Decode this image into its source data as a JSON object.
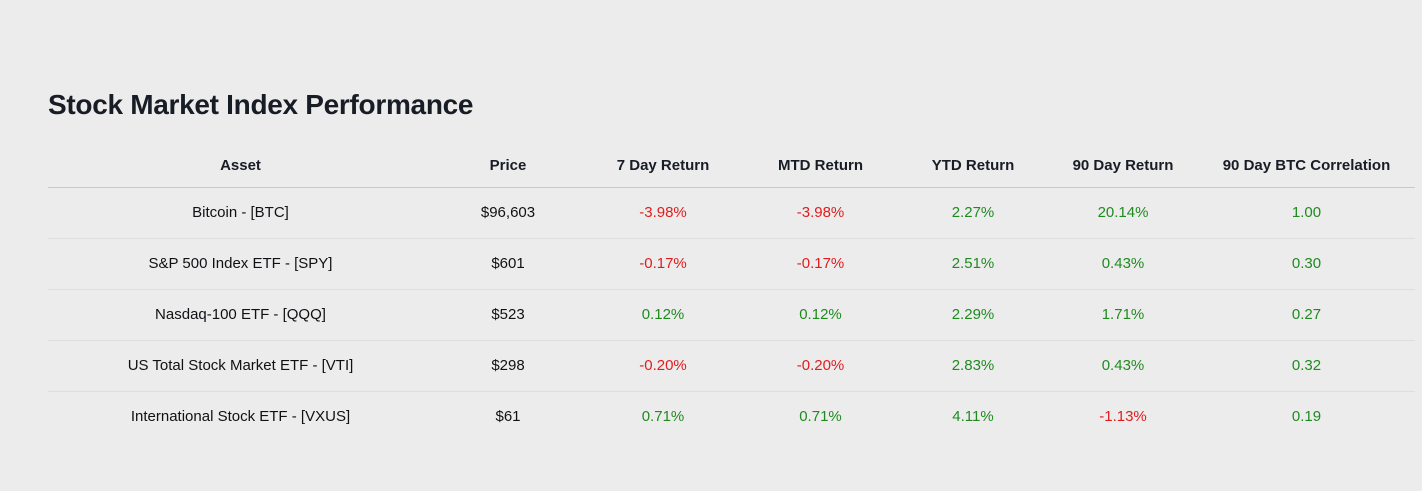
{
  "page": {
    "title": "Stock Market Index Performance"
  },
  "colors": {
    "positive": "#1f8b1f",
    "negative": "#e21c1c",
    "text": "#101114"
  },
  "table": {
    "columns": [
      "Asset",
      "Price",
      "7 Day Return",
      "MTD Return",
      "YTD Return",
      "90 Day Return",
      "90 Day BTC Correlation"
    ],
    "rows": [
      {
        "asset": "Bitcoin - [BTC]",
        "price": "$96,603",
        "returns": [
          {
            "value": "-3.98%",
            "sentiment": "negative"
          },
          {
            "value": "-3.98%",
            "sentiment": "negative"
          },
          {
            "value": "2.27%",
            "sentiment": "positive"
          },
          {
            "value": "20.14%",
            "sentiment": "positive"
          },
          {
            "value": "1.00",
            "sentiment": "positive"
          }
        ]
      },
      {
        "asset": "S&P 500 Index ETF - [SPY]",
        "price": "$601",
        "returns": [
          {
            "value": "-0.17%",
            "sentiment": "negative"
          },
          {
            "value": "-0.17%",
            "sentiment": "negative"
          },
          {
            "value": "2.51%",
            "sentiment": "positive"
          },
          {
            "value": "0.43%",
            "sentiment": "positive"
          },
          {
            "value": "0.30",
            "sentiment": "positive"
          }
        ]
      },
      {
        "asset": "Nasdaq-100 ETF - [QQQ]",
        "price": "$523",
        "returns": [
          {
            "value": "0.12%",
            "sentiment": "positive"
          },
          {
            "value": "0.12%",
            "sentiment": "positive"
          },
          {
            "value": "2.29%",
            "sentiment": "positive"
          },
          {
            "value": "1.71%",
            "sentiment": "positive"
          },
          {
            "value": "0.27",
            "sentiment": "positive"
          }
        ]
      },
      {
        "asset": "US Total Stock Market ETF - [VTI]",
        "price": "$298",
        "returns": [
          {
            "value": "-0.20%",
            "sentiment": "negative"
          },
          {
            "value": "-0.20%",
            "sentiment": "negative"
          },
          {
            "value": "2.83%",
            "sentiment": "positive"
          },
          {
            "value": "0.43%",
            "sentiment": "positive"
          },
          {
            "value": "0.32",
            "sentiment": "positive"
          }
        ]
      },
      {
        "asset": "International Stock ETF - [VXUS]",
        "price": "$61",
        "returns": [
          {
            "value": "0.71%",
            "sentiment": "positive"
          },
          {
            "value": "0.71%",
            "sentiment": "positive"
          },
          {
            "value": "4.11%",
            "sentiment": "positive"
          },
          {
            "value": "-1.13%",
            "sentiment": "negative"
          },
          {
            "value": "0.19",
            "sentiment": "positive"
          }
        ]
      }
    ]
  }
}
